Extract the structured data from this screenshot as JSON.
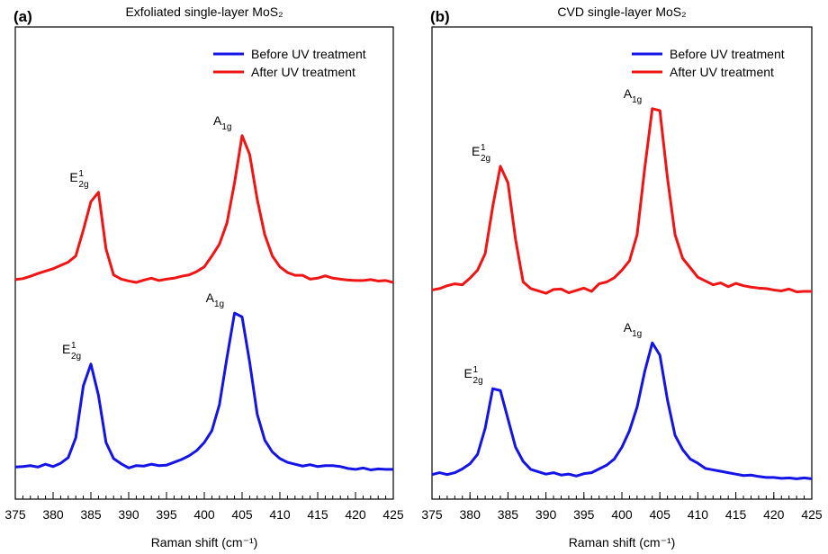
{
  "chart_data": [
    {
      "type": "line",
      "panel_label": "(a)",
      "title": "Exfoliated single-layer MoS₂",
      "xlabel": "Raman shift (cm⁻¹)",
      "x": [
        375,
        376,
        377,
        378,
        379,
        380,
        381,
        382,
        383,
        384,
        385,
        386,
        387,
        388,
        389,
        390,
        391,
        392,
        393,
        394,
        395,
        396,
        397,
        398,
        399,
        400,
        401,
        402,
        403,
        404,
        405,
        406,
        407,
        408,
        409,
        410,
        411,
        412,
        413,
        414,
        415,
        416,
        417,
        418,
        419,
        420,
        421,
        422,
        423,
        424,
        425
      ],
      "xlim": [
        375,
        425
      ],
      "xticks": [
        375,
        380,
        385,
        390,
        395,
        400,
        405,
        410,
        415,
        420,
        425
      ],
      "ylim": [
        0,
        100
      ],
      "legend": "upper right",
      "series": [
        {
          "name": "Before UV treatment",
          "color": "#1414e6",
          "values": [
            6.8,
            6.9,
            7.1,
            6.8,
            7.4,
            6.9,
            7.6,
            8.8,
            13,
            24,
            28.6,
            22,
            12,
            8.6,
            7.5,
            6.6,
            7.1,
            7,
            7.4,
            7.1,
            7.2,
            7.8,
            8.4,
            9.2,
            10.3,
            12,
            14.5,
            20,
            30,
            39.4,
            38.6,
            29,
            18,
            12.5,
            10,
            8.6,
            7.8,
            7.4,
            7,
            7.3,
            6.9,
            7.1,
            7.1,
            6.9,
            6.5,
            6.3,
            6.6,
            6.2,
            6.4,
            6.3,
            6.3
          ],
          "annotations": [
            {
              "x": 385,
              "base": "E",
              "sup": "1",
              "sub": "2g"
            },
            {
              "x": 404,
              "base": "A",
              "sub": "1g"
            }
          ]
        },
        {
          "name": "After UV treatment",
          "color": "#f01414",
          "values": [
            46.5,
            46.7,
            47.2,
            47.8,
            48.3,
            48.8,
            49.5,
            50.2,
            51.5,
            57,
            63,
            65,
            53,
            47.5,
            46.6,
            46.2,
            45.9,
            46.4,
            46.8,
            46.3,
            46.6,
            46.8,
            47.2,
            47.5,
            48.2,
            49.2,
            51.5,
            54,
            58.5,
            67,
            77,
            73,
            63.5,
            56,
            51.5,
            49.2,
            48,
            47.4,
            47.4,
            46.6,
            46.8,
            47.3,
            46.8,
            46.6,
            46.4,
            46.3,
            46.3,
            46.5,
            46.2,
            46.3,
            45.9
          ],
          "annotations": [
            {
              "x": 386,
              "base": "E",
              "sup": "1",
              "sub": "2g"
            },
            {
              "x": 405,
              "base": "A",
              "sub": "1g"
            }
          ]
        }
      ]
    },
    {
      "type": "line",
      "panel_label": "(b)",
      "title": "CVD single-layer MoS₂",
      "xlabel": "Raman shift (cm⁻¹)",
      "x": [
        375,
        376,
        377,
        378,
        379,
        380,
        381,
        382,
        383,
        384,
        385,
        386,
        387,
        388,
        389,
        390,
        391,
        392,
        393,
        394,
        395,
        396,
        397,
        398,
        399,
        400,
        401,
        402,
        403,
        404,
        405,
        406,
        407,
        408,
        409,
        410,
        411,
        412,
        413,
        414,
        415,
        416,
        417,
        418,
        419,
        420,
        421,
        422,
        423,
        424,
        425
      ],
      "xlim": [
        375,
        425
      ],
      "xticks": [
        375,
        380,
        385,
        390,
        395,
        400,
        405,
        410,
        415,
        420,
        425
      ],
      "ylim": [
        0,
        100
      ],
      "legend": "upper right",
      "series": [
        {
          "name": "Before UV treatment",
          "color": "#1414e6",
          "values": [
            5.2,
            5.6,
            5.2,
            5.6,
            6.4,
            7.5,
            9.5,
            15,
            23.4,
            23,
            17,
            11,
            8,
            6.3,
            5.8,
            5.3,
            5.6,
            5.1,
            5.3,
            4.9,
            5.4,
            5.6,
            6.4,
            7.2,
            8.5,
            11,
            14.5,
            19.5,
            27,
            33.1,
            30.5,
            21,
            13.5,
            10.5,
            8.5,
            7.6,
            6.5,
            6.2,
            5.9,
            5.6,
            5.3,
            5,
            5.1,
            4.8,
            4.6,
            4.6,
            4.4,
            4.5,
            4.3,
            4.5,
            4.3
          ],
          "annotations": [
            {
              "x": 383,
              "base": "E",
              "sup": "1",
              "sub": "2g"
            },
            {
              "x": 404,
              "base": "A",
              "sub": "1g"
            }
          ]
        },
        {
          "name": "After UV treatment",
          "color": "#f01414",
          "values": [
            44.3,
            44.6,
            45.2,
            45.6,
            45.4,
            46.8,
            48.5,
            52,
            62,
            70.5,
            67,
            55,
            46,
            44.6,
            44.1,
            43.6,
            44.4,
            44.5,
            43.7,
            44.2,
            44.7,
            44,
            45.6,
            46,
            46.9,
            48.5,
            50.5,
            56,
            70,
            82.7,
            82.3,
            68,
            56,
            51,
            49,
            47,
            46.2,
            45.4,
            45.8,
            45,
            45.7,
            45.2,
            44.9,
            44.7,
            44.6,
            44.3,
            44.1,
            44.5,
            43.9,
            44,
            44
          ],
          "annotations": [
            {
              "x": 384,
              "base": "E",
              "sup": "1",
              "sub": "2g"
            },
            {
              "x": 404,
              "base": "A",
              "sub": "1g"
            }
          ]
        }
      ]
    }
  ]
}
